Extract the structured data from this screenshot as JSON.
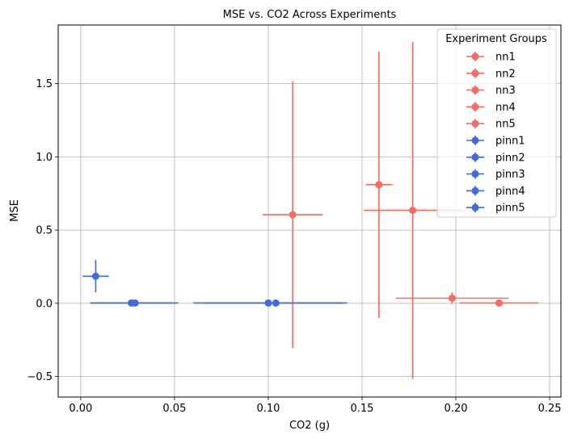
{
  "chart_data": {
    "type": "scatter",
    "title": "MSE vs. CO2 Across Experiments",
    "xlabel": "CO2 (g)",
    "ylabel": "MSE",
    "xlim": [
      -0.012,
      0.256
    ],
    "ylim": [
      -0.64,
      1.9
    ],
    "xticks": [
      0.0,
      0.05,
      0.1,
      0.15,
      0.2,
      0.25
    ],
    "xtick_labels": [
      "0.00",
      "0.05",
      "0.10",
      "0.15",
      "0.20",
      "0.25"
    ],
    "yticks": [
      -0.5,
      0.0,
      0.5,
      1.0,
      1.5
    ],
    "ytick_labels": [
      "−0.5",
      "0.0",
      "0.5",
      "1.0",
      "1.5"
    ],
    "grid": true,
    "legend": {
      "title": "Experiment Groups",
      "placement": "top-right"
    },
    "colors": {
      "nn": "#f96a60",
      "pinn": "#4169e1"
    },
    "series": [
      {
        "name": "nn1",
        "group": "nn",
        "x": 0.113,
        "y": 0.605,
        "xerr": 0.016,
        "yerr": 0.91
      },
      {
        "name": "nn2",
        "group": "nn",
        "x": 0.159,
        "y": 0.81,
        "xerr": 0.007,
        "yerr": 0.91
      },
      {
        "name": "nn3",
        "group": "nn",
        "x": 0.177,
        "y": 0.635,
        "xerr": 0.026,
        "yerr": 1.15
      },
      {
        "name": "nn4",
        "group": "nn",
        "x": 0.198,
        "y": 0.035,
        "xerr": 0.03,
        "yerr": 0.04
      },
      {
        "name": "nn5",
        "group": "nn",
        "x": 0.223,
        "y": 0.002,
        "xerr": 0.021,
        "yerr": 0.005
      },
      {
        "name": "pinn1",
        "group": "pinn",
        "x": 0.008,
        "y": 0.185,
        "xerr": 0.007,
        "yerr": 0.11
      },
      {
        "name": "pinn2",
        "group": "pinn",
        "x": 0.027,
        "y": 0.002,
        "xerr": 0.022,
        "yerr": 0.004
      },
      {
        "name": "pinn3",
        "group": "pinn",
        "x": 0.029,
        "y": 0.002,
        "xerr": 0.023,
        "yerr": 0.004
      },
      {
        "name": "pinn4",
        "group": "pinn",
        "x": 0.1,
        "y": 0.002,
        "xerr": 0.04,
        "yerr": 0.004
      },
      {
        "name": "pinn5",
        "group": "pinn",
        "x": 0.104,
        "y": 0.002,
        "xerr": 0.038,
        "yerr": 0.004
      }
    ]
  }
}
